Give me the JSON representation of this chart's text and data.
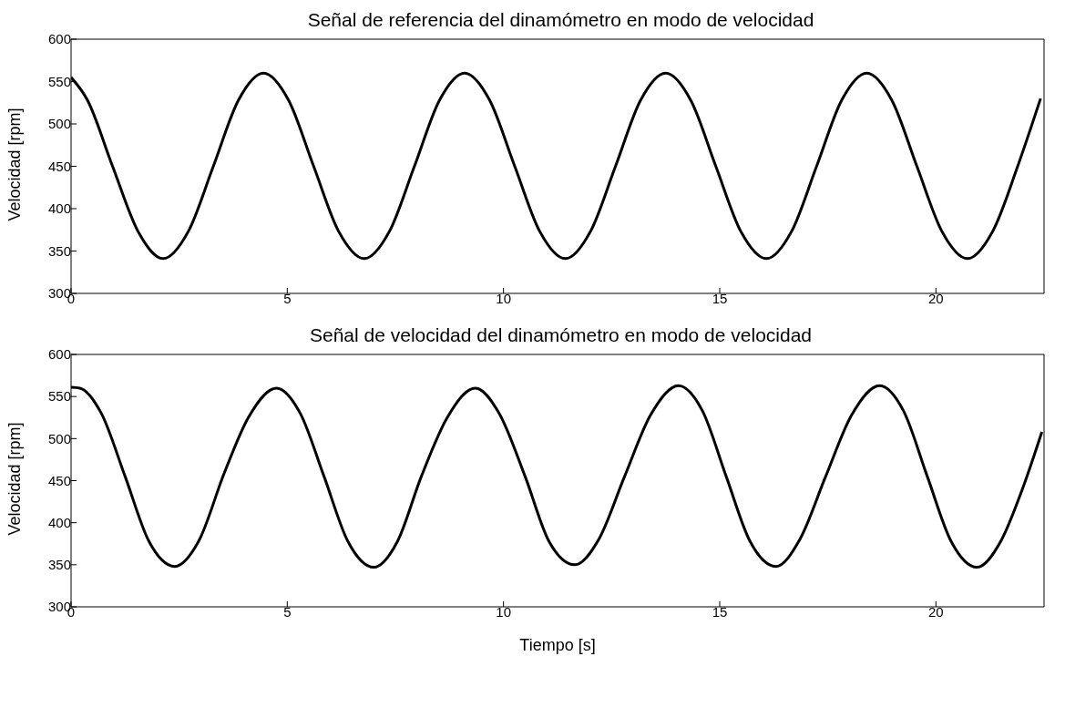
{
  "chart_data": [
    {
      "type": "line",
      "title": "Señal de referencia del dinamómetro en modo de velocidad",
      "ylabel": "Velocidad [rpm]",
      "color": "#000000",
      "x": [
        0,
        0.38,
        0.96,
        1.55,
        2.13,
        2.71,
        3.29,
        3.87,
        4.45,
        5.03,
        5.61,
        6.19,
        6.78,
        7.36,
        7.94,
        8.52,
        9.1,
        9.68,
        10.26,
        10.84,
        11.43,
        12.01,
        12.59,
        13.17,
        13.75,
        14.33,
        14.91,
        15.49,
        16.08,
        16.66,
        17.24,
        17.82,
        18.4,
        18.98,
        19.56,
        20.14,
        20.73,
        21.31,
        21.89,
        22.42
      ],
      "values": [
        555,
        528,
        450,
        373,
        341,
        373,
        450,
        528,
        560,
        528,
        450,
        373,
        341,
        373,
        450,
        528,
        560,
        528,
        450,
        373,
        341,
        373,
        450,
        528,
        560,
        528,
        450,
        373,
        341,
        373,
        450,
        528,
        560,
        528,
        450,
        373,
        341,
        373,
        450,
        530
      ],
      "xlim": [
        0,
        22.5
      ],
      "xticks": [
        0,
        5,
        10,
        15,
        20
      ],
      "ylim": [
        300,
        600
      ],
      "yticks": [
        300,
        350,
        400,
        450,
        500,
        550,
        600
      ]
    },
    {
      "type": "line",
      "title": "Señal de velocidad del dinamómetro en modo de velocidad",
      "xlabel": "Tiempo [s]",
      "ylabel": "Velocidad [rpm]",
      "color": "#000000",
      "x": [
        0,
        0.2,
        0.7,
        1.25,
        1.8,
        2.4,
        2.95,
        3.55,
        4.1,
        4.75,
        5.3,
        5.85,
        6.4,
        7.0,
        7.55,
        8.1,
        8.7,
        9.35,
        9.9,
        10.5,
        11.05,
        11.65,
        12.2,
        12.8,
        13.4,
        14.05,
        14.6,
        15.15,
        15.7,
        16.3,
        16.85,
        17.45,
        18.05,
        18.7,
        19.25,
        19.8,
        20.35,
        20.95,
        21.5,
        22.0,
        22.45
      ],
      "values": [
        561,
        560,
        530,
        455,
        378,
        348,
        378,
        460,
        525,
        560,
        530,
        455,
        378,
        347,
        378,
        455,
        525,
        560,
        530,
        455,
        378,
        350,
        380,
        455,
        528,
        563,
        533,
        455,
        378,
        348,
        380,
        455,
        528,
        563,
        533,
        455,
        378,
        347,
        378,
        440,
        508
      ],
      "xlim": [
        0,
        22.5
      ],
      "xticks": [
        0,
        5,
        10,
        15,
        20
      ],
      "ylim": [
        300,
        600
      ],
      "yticks": [
        300,
        350,
        400,
        450,
        500,
        550,
        600
      ]
    }
  ]
}
